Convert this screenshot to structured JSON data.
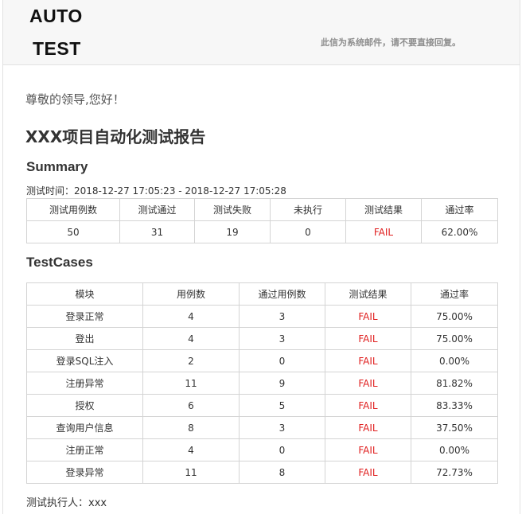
{
  "header": {
    "logo_line1": "AUTO",
    "logo_line2": "TEST",
    "notice": "此信为系统邮件，请不要直接回复。"
  },
  "greeting": "尊敬的领导,您好！",
  "report_title": "XXX项目自动化测试报告",
  "summary": {
    "heading": "Summary",
    "time_line": "测试时间：2018-12-27 17:05:23 - 2018-12-27 17:05:28",
    "headers": [
      "测试用例数",
      "测试通过",
      "测试失败",
      "未执行",
      "测试结果",
      "通过率"
    ],
    "values": [
      "50",
      "31",
      "19",
      "0",
      "FAIL",
      "62.00%"
    ]
  },
  "testcases": {
    "heading": "TestCases",
    "headers": [
      "模块",
      "用例数",
      "通过用例数",
      "测试结果",
      "通过率"
    ],
    "rows": [
      [
        "登录正常",
        "4",
        "3",
        "FAIL",
        "75.00%"
      ],
      [
        "登出",
        "4",
        "3",
        "FAIL",
        "75.00%"
      ],
      [
        "登录SQL注入",
        "2",
        "0",
        "FAIL",
        "0.00%"
      ],
      [
        "注册异常",
        "11",
        "9",
        "FAIL",
        "81.82%"
      ],
      [
        "授权",
        "6",
        "5",
        "FAIL",
        "83.33%"
      ],
      [
        "查询用户信息",
        "8",
        "3",
        "FAIL",
        "37.50%"
      ],
      [
        "注册正常",
        "4",
        "0",
        "FAIL",
        "0.00%"
      ],
      [
        "登录异常",
        "11",
        "8",
        "FAIL",
        "72.73%"
      ]
    ]
  },
  "footer": "测试执行人：xxx",
  "colors": {
    "fail": "#e02020",
    "header_bg": "#f7f7f7",
    "border": "#d4d4d4"
  }
}
